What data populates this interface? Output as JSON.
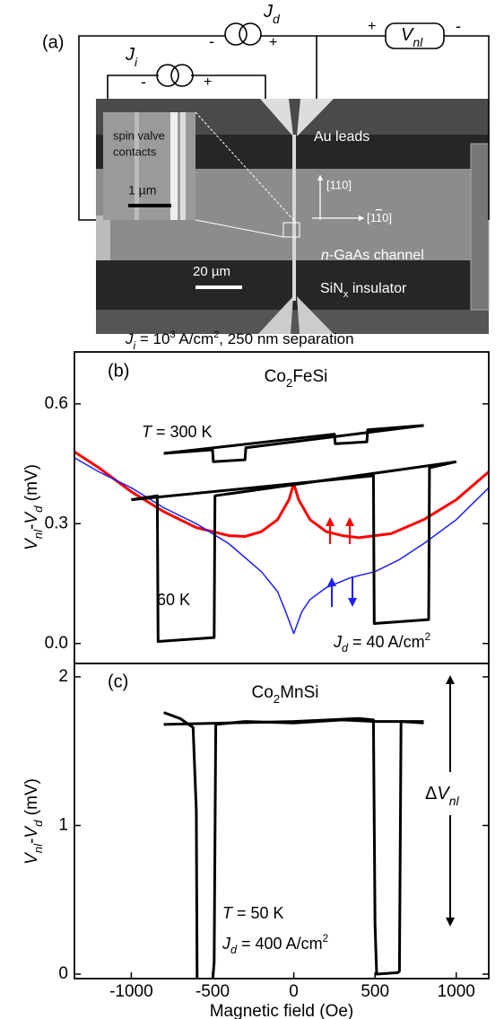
{
  "panel_a": {
    "label": "(a)",
    "jd": [
      {
        "text": "J",
        "style": "i"
      },
      {
        "text": "d",
        "style": "isub"
      }
    ],
    "ji": [
      {
        "text": "J",
        "style": "i"
      },
      {
        "text": "i",
        "style": "isub"
      }
    ],
    "vnl": [
      {
        "text": "V",
        "style": "i"
      },
      {
        "text": "nl",
        "style": "isub"
      }
    ],
    "signs": [
      "-",
      "+",
      "-",
      "+",
      "+",
      "-"
    ],
    "inset_text": [
      "spin valve",
      "contacts"
    ],
    "inset_scale": "1 µm",
    "au_leads": "Au leads",
    "dir_110": "[110]",
    "dir_1bar10": [
      "[1",
      {
        "text": "1",
        "style": "over"
      },
      "0]"
    ],
    "channel": [
      {
        "text": "n",
        "style": "i"
      },
      "-GaAs channel"
    ],
    "scale": "20 µm",
    "insulator": [
      "SiN",
      {
        "text": "x",
        "style": "sub"
      },
      " insulator"
    ]
  },
  "header": [
    {
      "text": "J",
      "style": "i"
    },
    {
      "text": "i",
      "style": "isub"
    },
    " = 10",
    {
      "text": "3",
      "style": "sup"
    },
    " A/cm",
    {
      "text": "2",
      "style": "sup"
    },
    ", 250 nm separation"
  ],
  "chart_data": [
    {
      "type": "line",
      "label": "(b)",
      "title": [
        "Co",
        {
          "text": "2",
          "style": "sub"
        },
        "FeSi"
      ],
      "ylabel": [
        {
          "text": "V",
          "style": "i"
        },
        {
          "text": "nl",
          "style": "isub"
        },
        "-",
        {
          "text": "V",
          "style": "i"
        },
        {
          "text": "d",
          "style": "isub"
        },
        " (mV)"
      ],
      "annotations": [
        [
          {
            "text": "T",
            "style": "i"
          },
          " = 300 K"
        ],
        "60 K",
        [
          {
            "text": "J",
            "style": "i"
          },
          {
            "text": "d",
            "style": "isub"
          },
          " = 40 A/cm",
          {
            "text": "2",
            "style": "sup"
          }
        ]
      ],
      "xlim": [
        -1350,
        1200
      ],
      "ylim": [
        -0.05,
        0.73
      ],
      "yticks": [
        {
          "value": 0,
          "label": "0.0"
        },
        0.3,
        0.6
      ],
      "series": [
        {
          "color": "#ff0000",
          "width": 3,
          "x": [
            -1350,
            -1200,
            -1000,
            -800,
            -600,
            -400,
            -300,
            -200,
            -100,
            -30,
            0,
            30,
            100,
            200,
            300,
            400,
            600,
            800,
            1000,
            1200
          ],
          "values": [
            0.48,
            0.44,
            0.38,
            0.33,
            0.29,
            0.27,
            0.268,
            0.28,
            0.31,
            0.36,
            0.4,
            0.36,
            0.31,
            0.28,
            0.27,
            0.265,
            0.275,
            0.31,
            0.36,
            0.43
          ]
        },
        {
          "color": "#1f1fff",
          "width": 1.5,
          "x": [
            -1350,
            -1200,
            -1000,
            -800,
            -600,
            -400,
            -200,
            -100,
            -50,
            0,
            50,
            100,
            200,
            350,
            500,
            650,
            800,
            1000,
            1200
          ],
          "values": [
            0.465,
            0.43,
            0.39,
            0.34,
            0.3,
            0.25,
            0.18,
            0.13,
            0.08,
            0.025,
            0.08,
            0.11,
            0.14,
            0.165,
            0.18,
            0.21,
            0.25,
            0.31,
            0.39
          ]
        },
        {
          "color": "#000000",
          "width": 3,
          "x": [
            -800,
            -500,
            -495,
            -300,
            -295,
            800
          ],
          "values": [
            0.476,
            0.485,
            0.455,
            0.46,
            0.49,
            0.546
          ]
        },
        {
          "color": "#000000",
          "width": 3,
          "x": [
            -800,
            250,
            255,
            450,
            455,
            800
          ],
          "values": [
            0.476,
            0.524,
            0.5,
            0.505,
            0.535,
            0.546
          ]
        },
        {
          "color": "#000000",
          "width": 3,
          "x": [
            -1000,
            -840,
            -835,
            -490,
            -485,
            1000
          ],
          "values": [
            0.36,
            0.37,
            0.005,
            0.015,
            0.37,
            0.455
          ]
        },
        {
          "color": "#000000",
          "width": 3,
          "x": [
            -1000,
            490,
            495,
            830,
            835,
            1000
          ],
          "values": [
            0.36,
            0.42,
            0.05,
            0.06,
            0.44,
            0.455
          ]
        }
      ]
    },
    {
      "type": "line",
      "label": "(c)",
      "title": [
        "Co",
        {
          "text": "2",
          "style": "sub"
        },
        "MnSi"
      ],
      "ylabel": [
        {
          "text": "V",
          "style": "i"
        },
        {
          "text": "nl",
          "style": "isub"
        },
        "-",
        {
          "text": "V",
          "style": "i"
        },
        {
          "text": "d",
          "style": "isub"
        },
        " (mV)"
      ],
      "xlabel": "Magnetic field (Oe)",
      "annotations": [
        [
          {
            "text": "T",
            "style": "i"
          },
          " = 50 K"
        ],
        [
          {
            "text": "J",
            "style": "i"
          },
          {
            "text": "d",
            "style": "isub"
          },
          " = 400 A/cm",
          {
            "text": "2",
            "style": "sup"
          }
        ],
        [
          "Δ",
          {
            "text": "V",
            "style": "i"
          },
          {
            "text": "nl",
            "style": "isub"
          }
        ]
      ],
      "xlim": [
        -1350,
        1200
      ],
      "ylim": [
        -0.03,
        2.09
      ],
      "xticks": [
        -1000,
        -500,
        0,
        500,
        1000
      ],
      "yticks": [
        0,
        1,
        2
      ],
      "series": [
        {
          "color": "#000000",
          "width": 3,
          "x": [
            -800,
            -700,
            -620,
            -600,
            -595,
            -500,
            -490,
            -480,
            -300,
            0,
            300,
            500,
            800
          ],
          "values": [
            1.76,
            1.72,
            1.66,
            1.1,
            -0.04,
            -0.05,
            0.08,
            1.68,
            1.7,
            1.69,
            1.71,
            1.7,
            1.7
          ]
        },
        {
          "color": "#000000",
          "width": 3,
          "x": [
            -800,
            -400,
            0,
            400,
            490,
            500,
            510,
            640,
            650,
            660,
            800
          ],
          "values": [
            1.68,
            1.69,
            1.7,
            1.72,
            1.71,
            0.33,
            0.0,
            0.01,
            0.02,
            1.7,
            1.69
          ]
        }
      ]
    }
  ]
}
